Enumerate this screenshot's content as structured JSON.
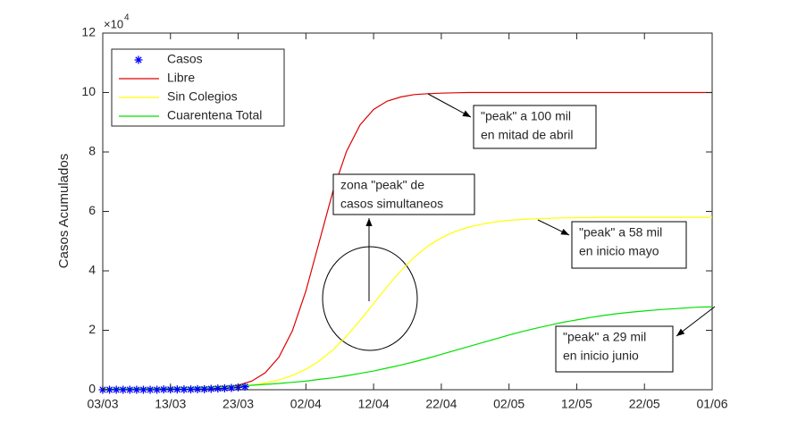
{
  "chart_data": {
    "type": "line",
    "y_label": "Casos Acumulados",
    "y_multiplier": "×10",
    "y_multiplier_exponent": "4",
    "xlim": [
      0,
      90
    ],
    "xticks": [
      {
        "value": 0,
        "label": "03/03"
      },
      {
        "value": 10,
        "label": "13/03"
      },
      {
        "value": 20,
        "label": "23/03"
      },
      {
        "value": 30,
        "label": "02/04"
      },
      {
        "value": 40,
        "label": "12/04"
      },
      {
        "value": 50,
        "label": "22/04"
      },
      {
        "value": 60,
        "label": "02/05"
      },
      {
        "value": 70,
        "label": "12/05"
      },
      {
        "value": 80,
        "label": "22/05"
      },
      {
        "value": 90,
        "label": "01/06"
      }
    ],
    "ylim": [
      0,
      12
    ],
    "yticks": [
      0,
      2,
      4,
      6,
      8,
      10,
      12
    ],
    "grid": false,
    "legend": "upper left",
    "series": [
      {
        "name": "Casos",
        "color": "#0000ff",
        "marker": "star",
        "x": [
          0,
          1,
          2,
          3,
          4,
          5,
          6,
          7,
          8,
          9,
          10,
          11,
          12,
          13,
          14,
          15,
          16,
          17,
          18,
          19,
          20,
          21
        ],
        "values": [
          0,
          0,
          0,
          0,
          0,
          0,
          0,
          0,
          0,
          0.01,
          0.01,
          0.01,
          0.01,
          0.01,
          0.02,
          0.02,
          0.03,
          0.04,
          0.05,
          0.06,
          0.08,
          0.1
        ]
      },
      {
        "name": "Libre",
        "color": "#dd0000",
        "x": [
          0,
          2,
          4,
          6,
          8,
          10,
          12,
          14,
          16,
          18,
          20,
          22,
          24,
          26,
          28,
          30,
          32,
          34,
          36,
          38,
          40,
          42,
          44,
          46,
          48,
          50,
          52,
          54,
          56,
          58,
          60,
          62,
          64,
          66,
          68,
          70,
          72,
          74,
          76,
          78,
          80,
          82,
          84,
          86,
          88,
          90
        ],
        "values": [
          0,
          0,
          0,
          0,
          0,
          0,
          0.01,
          0.02,
          0.04,
          0.07,
          0.15,
          0.29,
          0.57,
          1.09,
          1.98,
          3.32,
          5,
          6.68,
          8.02,
          8.91,
          9.43,
          9.71,
          9.85,
          9.93,
          9.96,
          9.98,
          9.99,
          10,
          10,
          10,
          10,
          10,
          10,
          10,
          10,
          10,
          10,
          10,
          10,
          10,
          10,
          10,
          10,
          10,
          10,
          10
        ]
      },
      {
        "name": "Sin Colegios",
        "color": "#ffff00",
        "x": [
          0,
          2,
          4,
          6,
          8,
          10,
          12,
          14,
          16,
          18,
          20,
          22,
          24,
          26,
          28,
          30,
          32,
          34,
          36,
          38,
          40,
          42,
          44,
          46,
          48,
          50,
          52,
          54,
          56,
          58,
          60,
          62,
          64,
          66,
          68,
          70,
          72,
          74,
          76,
          78,
          80,
          82,
          84,
          86,
          88,
          90
        ],
        "values": [
          0,
          0,
          0,
          0.01,
          0.01,
          0.01,
          0.02,
          0.03,
          0.05,
          0.07,
          0.1,
          0.15,
          0.23,
          0.33,
          0.48,
          0.69,
          0.97,
          1.34,
          1.8,
          2.33,
          2.9,
          3.47,
          4,
          4.46,
          4.83,
          5.11,
          5.32,
          5.47,
          5.57,
          5.65,
          5.7,
          5.73,
          5.75,
          5.77,
          5.78,
          5.79,
          5.79,
          5.8,
          5.8,
          5.8,
          5.8,
          5.8,
          5.8,
          5.8,
          5.8,
          5.8
        ]
      },
      {
        "name": "Cuarentena Total",
        "color": "#00e000",
        "x": [
          0,
          2,
          4,
          6,
          8,
          10,
          12,
          14,
          16,
          18,
          20,
          22,
          24,
          26,
          28,
          30,
          32,
          34,
          36,
          38,
          40,
          42,
          44,
          46,
          48,
          50,
          52,
          54,
          56,
          58,
          60,
          62,
          64,
          66,
          68,
          70,
          72,
          74,
          76,
          78,
          80,
          82,
          84,
          86,
          88,
          90
        ],
        "values": [
          0.02,
          0.03,
          0.03,
          0.04,
          0.04,
          0.05,
          0.06,
          0.07,
          0.09,
          0.11,
          0.13,
          0.15,
          0.18,
          0.21,
          0.25,
          0.29,
          0.35,
          0.4,
          0.47,
          0.55,
          0.63,
          0.73,
          0.83,
          0.94,
          1.06,
          1.19,
          1.32,
          1.45,
          1.58,
          1.71,
          1.84,
          1.96,
          2.07,
          2.17,
          2.27,
          2.35,
          2.43,
          2.5,
          2.56,
          2.61,
          2.65,
          2.69,
          2.72,
          2.75,
          2.78,
          2.79
        ]
      }
    ],
    "annotations": [
      {
        "lines": [
          "\"peak\" a 100 mil",
          "en mitad de abril"
        ]
      },
      {
        "lines": [
          "zona \"peak\" de",
          "casos simultaneos"
        ]
      },
      {
        "lines": [
          "\"peak\" a 58 mil",
          "en inicio mayo"
        ]
      },
      {
        "lines": [
          "\"peak\" a 29 mil",
          "en inicio junio"
        ]
      }
    ]
  }
}
